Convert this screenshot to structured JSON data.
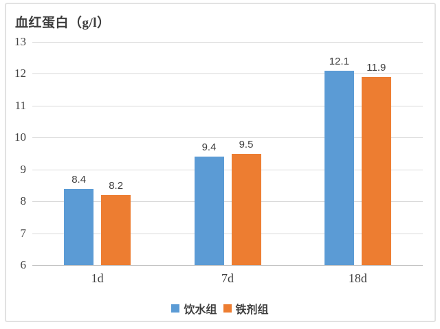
{
  "page": {
    "title": "血红蛋白（g/l）"
  },
  "chart_data": {
    "type": "bar",
    "title": "血红蛋白（g/l）",
    "categories": [
      "1d",
      "7d",
      "18d"
    ],
    "series": [
      {
        "name": "饮水组",
        "color": "#5B9BD5",
        "values": [
          8.4,
          9.4,
          12.1
        ]
      },
      {
        "name": "铁剂组",
        "color": "#ED7D31",
        "values": [
          8.2,
          9.5,
          11.9
        ]
      }
    ],
    "data_labels": [
      "8.4",
      "9.4",
      "12.1",
      "8.2",
      "9.5",
      "11.9"
    ],
    "xlabel": "",
    "ylabel": "",
    "ylim": [
      6,
      13
    ],
    "yticks": [
      6,
      7,
      8,
      9,
      10,
      11,
      12,
      13
    ],
    "grid": true,
    "legend_position": "bottom",
    "colors": {
      "series_blue": "#5B9BD5",
      "series_orange": "#ED7D31",
      "gridline": "#d9d9d9",
      "baseline": "#c4c4c4",
      "text": "#3f3f3f",
      "frame_border": "#e2e2e2",
      "background": "#ffffff"
    }
  }
}
